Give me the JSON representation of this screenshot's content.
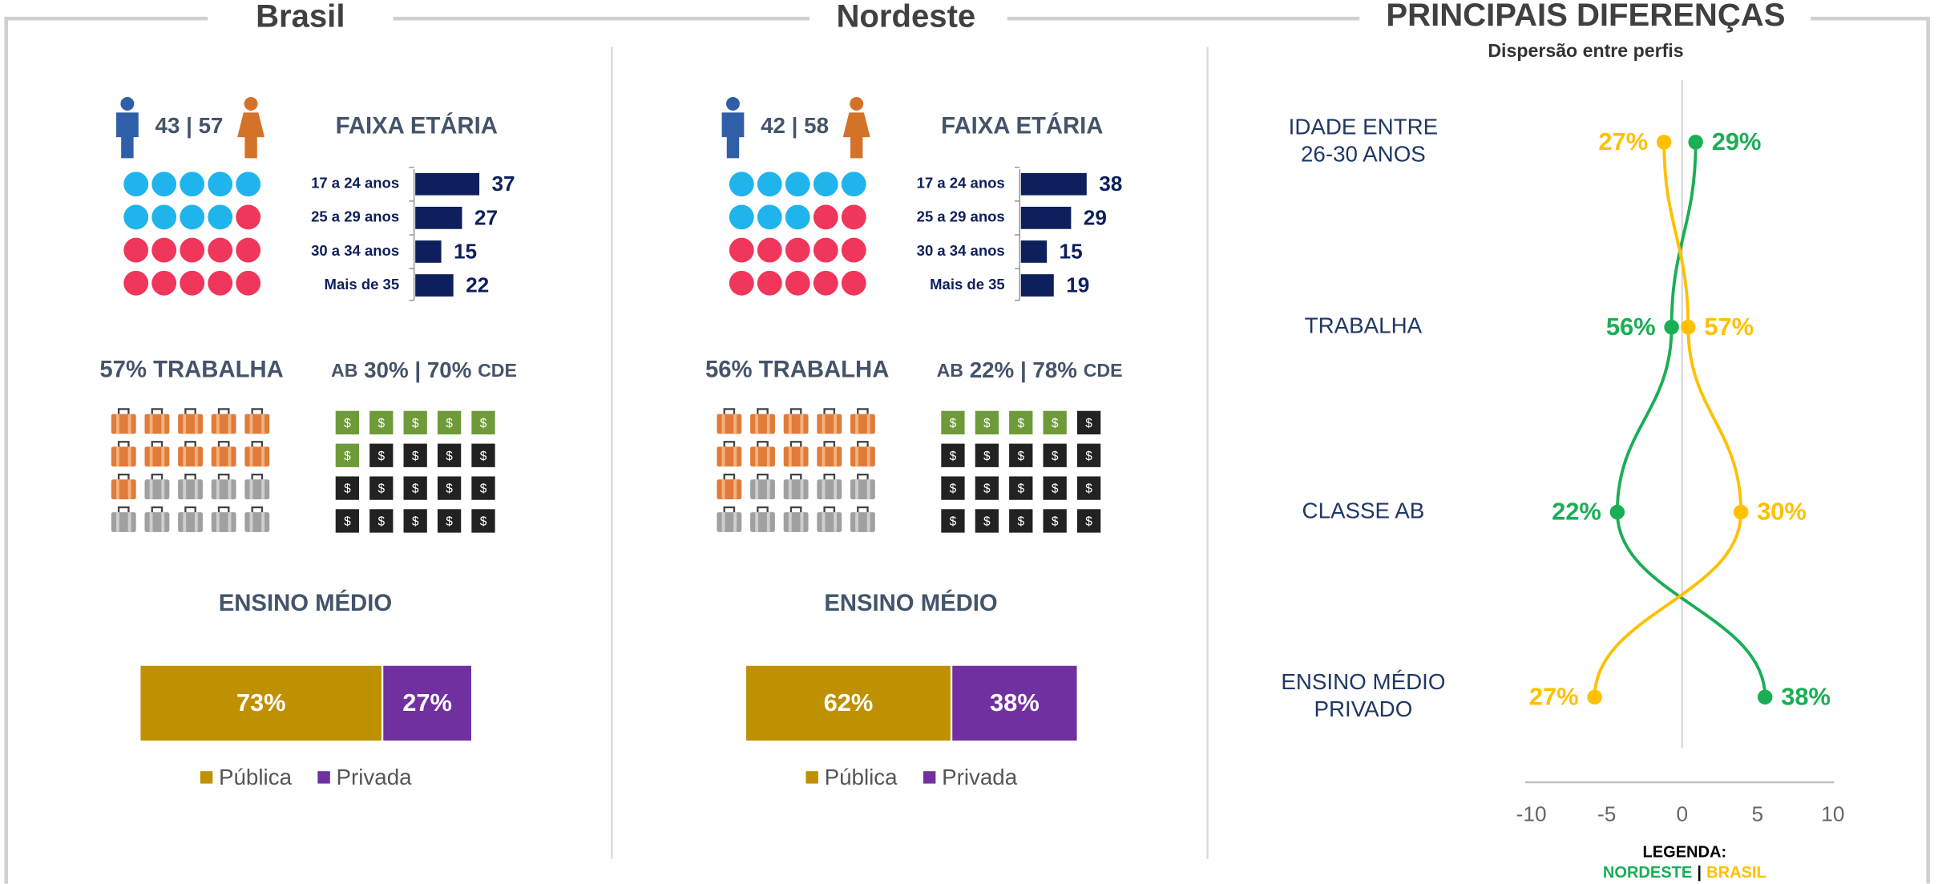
{
  "panels": [
    {
      "title": "Brasil",
      "gender": {
        "male": 43,
        "separator": "|",
        "female": 57
      },
      "gender_dots": {
        "male": 9,
        "total": 20,
        "male_color": "#1fb5ec",
        "female_color": "#f0365a"
      },
      "age": {
        "title": "FAIXA ETÁRIA",
        "categories": [
          "17 a 24 anos",
          "25 a 29 anos",
          "30 a 34 anos",
          "Mais de 35"
        ],
        "values": [
          37,
          27,
          15,
          22
        ],
        "color": "#0d1f5c"
      },
      "work": {
        "label": "57% TRABALHA",
        "icons_filled": 11,
        "icons_total": 20
      },
      "class": {
        "ab_label": "AB",
        "ab": "30%",
        "separator": "|",
        "cde": "70%",
        "cde_label": "CDE",
        "symbol": "$",
        "icons_ab": 6,
        "icons_total": 20
      },
      "school": {
        "title": "ENSINO MÉDIO",
        "series": [
          {
            "name": "Pública",
            "color": "#bf9000",
            "values": [
              73
            ],
            "value_labels": [
              "73%"
            ]
          },
          {
            "name": "Privada",
            "color": "#7030a0",
            "values": [
              27
            ],
            "value_labels": [
              "27%"
            ]
          }
        ]
      }
    },
    {
      "title": "Nordeste",
      "gender": {
        "male": 42,
        "separator": "|",
        "female": 58
      },
      "gender_dots": {
        "male": 8,
        "total": 20,
        "male_color": "#1fb5ec",
        "female_color": "#f0365a"
      },
      "age": {
        "title": "FAIXA ETÁRIA",
        "categories": [
          "17 a 24 anos",
          "25 a 29 anos",
          "30 a 34 anos",
          "Mais de 35"
        ],
        "values": [
          38,
          29,
          15,
          19
        ],
        "color": "#0d1f5c"
      },
      "work": {
        "label": "56% TRABALHA",
        "icons_filled": 11,
        "icons_total": 20
      },
      "class": {
        "ab_label": "AB",
        "ab": "22%",
        "separator": "|",
        "cde": "78%",
        "cde_label": "CDE",
        "symbol": "$",
        "icons_ab": 4,
        "icons_total": 20
      },
      "school": {
        "title": "ENSINO MÉDIO",
        "series": [
          {
            "name": "Pública",
            "color": "#bf9000",
            "values": [
              62
            ],
            "value_labels": [
              "62%"
            ]
          },
          {
            "name": "Privada",
            "color": "#7030a0",
            "values": [
              38
            ],
            "value_labels": [
              "38%"
            ]
          }
        ]
      }
    }
  ],
  "chart_data": {
    "type": "line",
    "title": "PRINCIPAIS DIFERENÇAS",
    "subtitle": "Dispersão entre perfis",
    "categories": [
      [
        "IDADE ENTRE",
        "26-30 ANOS"
      ],
      [
        "TRABALHA"
      ],
      [
        "CLASSE AB"
      ],
      [
        "ENSINO MÉDIO",
        "PRIVADO"
      ]
    ],
    "series": [
      {
        "name": "NORDESTE",
        "color": "#1aae55",
        "values": [
          0.9,
          -0.7,
          -4.3,
          5.5
        ],
        "percent_labels": [
          "29%",
          "56%",
          "22%",
          "38%"
        ]
      },
      {
        "name": "BRASIL",
        "color": "#ffc000",
        "values": [
          -1.2,
          0.4,
          3.9,
          -5.8
        ],
        "percent_labels": [
          "27%",
          "57%",
          "30%",
          "27%"
        ]
      }
    ],
    "xlim": [
      -10,
      10
    ],
    "xticks": [
      -10,
      -5,
      0,
      5,
      10
    ],
    "legend_title": "LEGENDA:",
    "legend_separator": "|"
  }
}
